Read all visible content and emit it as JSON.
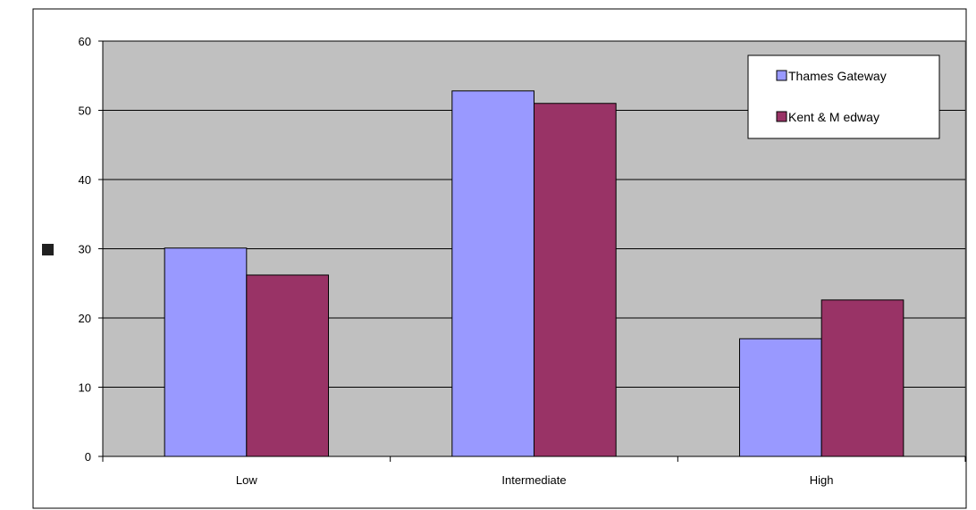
{
  "chart_data": {
    "type": "bar",
    "categories": [
      "Low",
      "Intermediate",
      "High"
    ],
    "series": [
      {
        "name": "Thames Gateway",
        "values": [
          30.1,
          52.8,
          17.0
        ],
        "color": "#9999ff"
      },
      {
        "name": "Kent & M edway",
        "values": [
          26.2,
          51.0,
          22.6
        ],
        "color": "#993366"
      }
    ],
    "ylabel": "",
    "ylim": [
      0,
      60
    ],
    "yticks": [
      0,
      10,
      20,
      30,
      40,
      50,
      60
    ],
    "grid": true,
    "legend": "top-right",
    "plot_background": "#c0c0c0"
  }
}
